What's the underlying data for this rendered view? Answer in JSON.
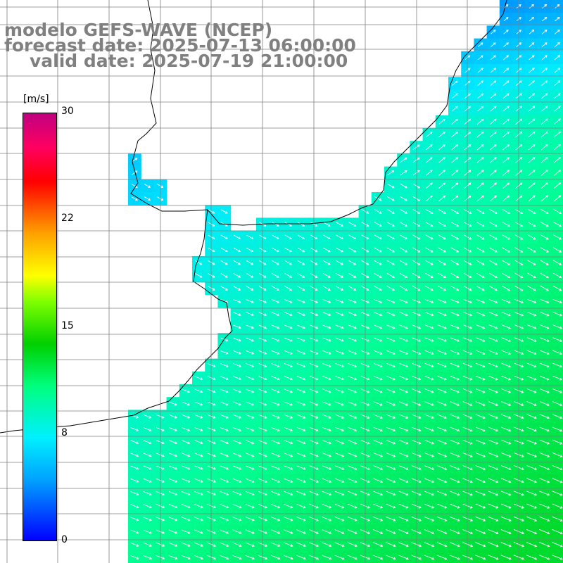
{
  "header": {
    "model": "modelo GEFS-WAVE (NCEP)",
    "forecast": "forecast date: 2025-07-13 06:00:00",
    "valid": "valid date: 2025-07-19 21:00:00"
  },
  "colorbar": {
    "unit": "[m/s]",
    "min": 0,
    "max": 30,
    "ticks": [
      "30",
      "22",
      "15",
      "8",
      "0"
    ],
    "stops": [
      "#0000ff",
      "#00a0ff",
      "#00f0ff",
      "#00ff80",
      "#00d000",
      "#80ff00",
      "#ffff00",
      "#ffa000",
      "#ff0000",
      "#ff0060",
      "#c00080"
    ]
  },
  "map": {
    "field": "wind speed",
    "land_color": "#ffffff",
    "grid_color": "#808080",
    "arrow_color": "#ffffff",
    "coast_color": "#000000"
  }
}
